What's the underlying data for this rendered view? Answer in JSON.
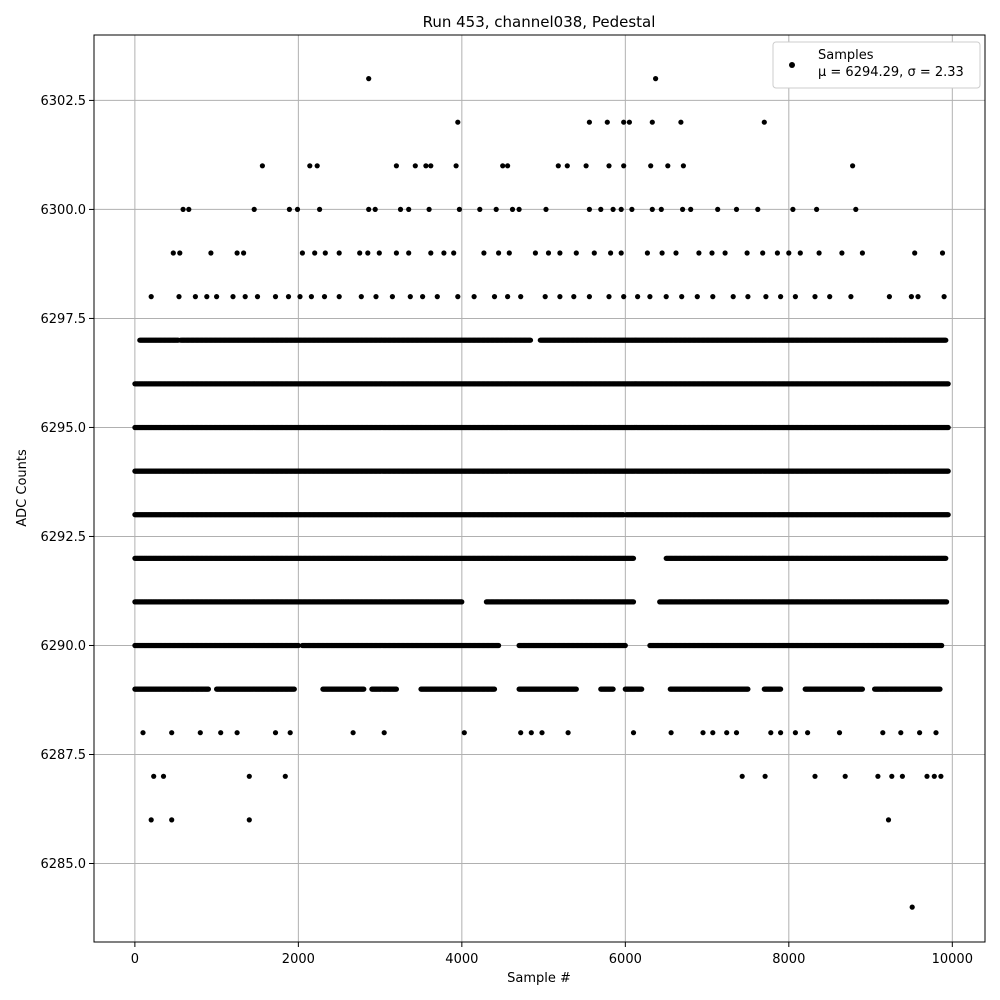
{
  "chart_data": {
    "type": "scatter",
    "title": "Run 453, channel038, Pedestal",
    "xlabel": "Sample #",
    "ylabel": "ADC Counts",
    "xlim": [
      -500,
      10400
    ],
    "ylim": [
      6283.2,
      6304.0
    ],
    "x_ticks": [
      0,
      2000,
      4000,
      6000,
      8000,
      10000
    ],
    "x_tick_labels": [
      "0",
      "2000",
      "4000",
      "6000",
      "8000",
      "10000"
    ],
    "y_ticks": [
      6285.0,
      6287.5,
      6290.0,
      6292.5,
      6295.0,
      6297.5,
      6300.0,
      6302.5
    ],
    "y_tick_labels": [
      "6285.0",
      "6287.5",
      "6290.0",
      "6292.5",
      "6295.0",
      "6297.5",
      "6300.0",
      "6302.5"
    ],
    "grid": true,
    "legend_position": "top-right",
    "legend": {
      "label_line1": "Samples",
      "label_line2": "μ = 6294.29, σ = 2.33"
    },
    "marker_color": "#000000",
    "series": [
      {
        "name": "Samples",
        "n_samples": 10000,
        "mean": 6294.29,
        "std": 2.33,
        "points": [
          [
            2860,
            6303
          ],
          [
            6370,
            6303
          ],
          [
            3950,
            6302
          ],
          [
            5560,
            6302
          ],
          [
            5780,
            6302
          ],
          [
            5980,
            6302
          ],
          [
            6050,
            6302
          ],
          [
            6330,
            6302
          ],
          [
            6680,
            6302
          ],
          [
            7700,
            6302
          ],
          [
            1560,
            6301
          ],
          [
            2140,
            6301
          ],
          [
            2230,
            6301
          ],
          [
            3200,
            6301
          ],
          [
            3430,
            6301
          ],
          [
            3560,
            6301
          ],
          [
            3620,
            6301
          ],
          [
            3930,
            6301
          ],
          [
            4500,
            6301
          ],
          [
            4560,
            6301
          ],
          [
            5180,
            6301
          ],
          [
            5290,
            6301
          ],
          [
            5520,
            6301
          ],
          [
            5800,
            6301
          ],
          [
            5980,
            6301
          ],
          [
            6310,
            6301
          ],
          [
            6520,
            6301
          ],
          [
            6710,
            6301
          ],
          [
            8780,
            6301
          ],
          [
            590,
            6300
          ],
          [
            660,
            6300
          ],
          [
            1460,
            6300
          ],
          [
            1890,
            6300
          ],
          [
            1990,
            6300
          ],
          [
            2260,
            6300
          ],
          [
            2860,
            6300
          ],
          [
            2940,
            6300
          ],
          [
            3250,
            6300
          ],
          [
            3350,
            6300
          ],
          [
            3600,
            6300
          ],
          [
            3970,
            6300
          ],
          [
            4220,
            6300
          ],
          [
            4420,
            6300
          ],
          [
            4620,
            6300
          ],
          [
            4700,
            6300
          ],
          [
            5030,
            6300
          ],
          [
            5560,
            6300
          ],
          [
            5700,
            6300
          ],
          [
            5850,
            6300
          ],
          [
            5950,
            6300
          ],
          [
            6080,
            6300
          ],
          [
            6330,
            6300
          ],
          [
            6440,
            6300
          ],
          [
            6700,
            6300
          ],
          [
            6800,
            6300
          ],
          [
            7130,
            6300
          ],
          [
            7360,
            6300
          ],
          [
            7620,
            6300
          ],
          [
            8050,
            6300
          ],
          [
            8340,
            6300
          ],
          [
            8820,
            6300
          ],
          [
            470,
            6299
          ],
          [
            550,
            6299
          ],
          [
            930,
            6299
          ],
          [
            1250,
            6299
          ],
          [
            1330,
            6299
          ],
          [
            2050,
            6299
          ],
          [
            2200,
            6299
          ],
          [
            2330,
            6299
          ],
          [
            2500,
            6299
          ],
          [
            2750,
            6299
          ],
          [
            2850,
            6299
          ],
          [
            2990,
            6299
          ],
          [
            3200,
            6299
          ],
          [
            3350,
            6299
          ],
          [
            3620,
            6299
          ],
          [
            3780,
            6299
          ],
          [
            3900,
            6299
          ],
          [
            4270,
            6299
          ],
          [
            4450,
            6299
          ],
          [
            4580,
            6299
          ],
          [
            4900,
            6299
          ],
          [
            5060,
            6299
          ],
          [
            5200,
            6299
          ],
          [
            5400,
            6299
          ],
          [
            5620,
            6299
          ],
          [
            5820,
            6299
          ],
          [
            5950,
            6299
          ],
          [
            6270,
            6299
          ],
          [
            6450,
            6299
          ],
          [
            6620,
            6299
          ],
          [
            6900,
            6299
          ],
          [
            7060,
            6299
          ],
          [
            7220,
            6299
          ],
          [
            7490,
            6299
          ],
          [
            7680,
            6299
          ],
          [
            7860,
            6299
          ],
          [
            8000,
            6299
          ],
          [
            8140,
            6299
          ],
          [
            8370,
            6299
          ],
          [
            8650,
            6299
          ],
          [
            8900,
            6299
          ],
          [
            9540,
            6299
          ],
          [
            9880,
            6299
          ],
          [
            200,
            6298
          ],
          [
            540,
            6298
          ],
          [
            740,
            6298
          ],
          [
            880,
            6298
          ],
          [
            1000,
            6298
          ],
          [
            1200,
            6298
          ],
          [
            1350,
            6298
          ],
          [
            1500,
            6298
          ],
          [
            1720,
            6298
          ],
          [
            1880,
            6298
          ],
          [
            2020,
            6298
          ],
          [
            2160,
            6298
          ],
          [
            2320,
            6298
          ],
          [
            2500,
            6298
          ],
          [
            2770,
            6298
          ],
          [
            2950,
            6298
          ],
          [
            3150,
            6298
          ],
          [
            3370,
            6298
          ],
          [
            3520,
            6298
          ],
          [
            3700,
            6298
          ],
          [
            3950,
            6298
          ],
          [
            4150,
            6298
          ],
          [
            4400,
            6298
          ],
          [
            4560,
            6298
          ],
          [
            4720,
            6298
          ],
          [
            5020,
            6298
          ],
          [
            5200,
            6298
          ],
          [
            5370,
            6298
          ],
          [
            5560,
            6298
          ],
          [
            5800,
            6298
          ],
          [
            5980,
            6298
          ],
          [
            6150,
            6298
          ],
          [
            6300,
            6298
          ],
          [
            6500,
            6298
          ],
          [
            6690,
            6298
          ],
          [
            6880,
            6298
          ],
          [
            7070,
            6298
          ],
          [
            7320,
            6298
          ],
          [
            7500,
            6298
          ],
          [
            7720,
            6298
          ],
          [
            7900,
            6298
          ],
          [
            8080,
            6298
          ],
          [
            8320,
            6298
          ],
          [
            8500,
            6298
          ],
          [
            8760,
            6298
          ],
          [
            9230,
            6298
          ],
          [
            9500,
            6298
          ],
          [
            9580,
            6298
          ],
          [
            9900,
            6298
          ],
          [
            200,
            6286
          ],
          [
            450,
            6286
          ],
          [
            1400,
            6286
          ],
          [
            9220,
            6286
          ],
          [
            230,
            6287
          ],
          [
            350,
            6287
          ],
          [
            1400,
            6287
          ],
          [
            1840,
            6287
          ],
          [
            7430,
            6287
          ],
          [
            7710,
            6287
          ],
          [
            8320,
            6287
          ],
          [
            8690,
            6287
          ],
          [
            9090,
            6287
          ],
          [
            9260,
            6287
          ],
          [
            9390,
            6287
          ],
          [
            9690,
            6287
          ],
          [
            9780,
            6287
          ],
          [
            9860,
            6287
          ],
          [
            100,
            6288
          ],
          [
            450,
            6288
          ],
          [
            800,
            6288
          ],
          [
            1050,
            6288
          ],
          [
            1250,
            6288
          ],
          [
            1720,
            6288
          ],
          [
            1900,
            6288
          ],
          [
            2670,
            6288
          ],
          [
            3050,
            6288
          ],
          [
            4030,
            6288
          ],
          [
            4720,
            6288
          ],
          [
            4850,
            6288
          ],
          [
            4980,
            6288
          ],
          [
            5300,
            6288
          ],
          [
            6100,
            6288
          ],
          [
            6560,
            6288
          ],
          [
            6950,
            6288
          ],
          [
            7070,
            6288
          ],
          [
            7240,
            6288
          ],
          [
            7360,
            6288
          ],
          [
            7780,
            6288
          ],
          [
            7900,
            6288
          ],
          [
            8080,
            6288
          ],
          [
            8230,
            6288
          ],
          [
            8620,
            6288
          ],
          [
            9150,
            6288
          ],
          [
            9370,
            6288
          ],
          [
            9600,
            6288
          ],
          [
            9800,
            6288
          ],
          [
            9510,
            6284
          ]
        ],
        "dense_segments": [
          {
            "y": 6297,
            "x_ranges": [
              [
                60,
                530
              ],
              [
                560,
                4840
              ],
              [
                4960,
                9920
              ]
            ]
          },
          {
            "y": 6296,
            "x_ranges": [
              [
                0,
                9950
              ]
            ]
          },
          {
            "y": 6295,
            "x_ranges": [
              [
                0,
                9950
              ]
            ]
          },
          {
            "y": 6294,
            "x_ranges": [
              [
                0,
                9950
              ]
            ]
          },
          {
            "y": 6293,
            "x_ranges": [
              [
                0,
                5980
              ],
              [
                6010,
                9950
              ]
            ]
          },
          {
            "y": 6292,
            "x_ranges": [
              [
                0,
                6100
              ],
              [
                6500,
                9920
              ]
            ]
          },
          {
            "y": 6291,
            "x_ranges": [
              [
                0,
                4000
              ],
              [
                4300,
                6100
              ],
              [
                6420,
                9930
              ]
            ]
          },
          {
            "y": 6290,
            "x_ranges": [
              [
                0,
                2000
              ],
              [
                2050,
                4450
              ],
              [
                4700,
                6000
              ],
              [
                6300,
                9870
              ]
            ]
          },
          {
            "y": 6289,
            "x_ranges": [
              [
                0,
                900
              ],
              [
                1000,
                1950
              ],
              [
                2300,
                2800
              ],
              [
                2900,
                3200
              ],
              [
                3500,
                4400
              ],
              [
                4700,
                5400
              ],
              [
                5700,
                5850
              ],
              [
                6000,
                6200
              ],
              [
                6550,
                7500
              ],
              [
                7700,
                7900
              ],
              [
                8200,
                8900
              ],
              [
                9050,
                9850
              ]
            ]
          }
        ]
      }
    ]
  }
}
